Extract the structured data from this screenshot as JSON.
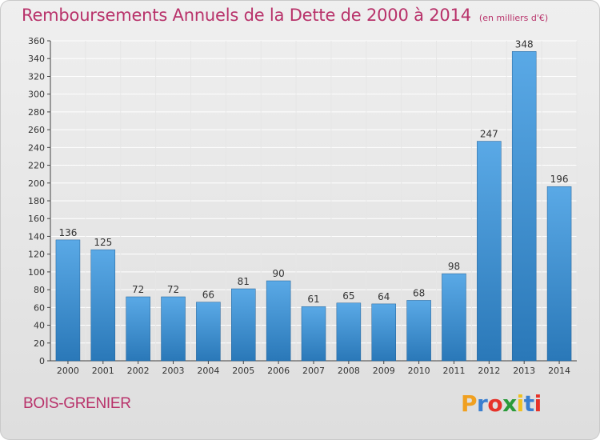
{
  "chart_data": {
    "type": "bar",
    "title": "Remboursements Annuels de la Dette de 2000 à 2014",
    "subtitle": "(en milliers d'€)",
    "categories": [
      "2000",
      "2001",
      "2002",
      "2003",
      "2004",
      "2005",
      "2006",
      "2007",
      "2008",
      "2009",
      "2010",
      "2011",
      "2012",
      "2013",
      "2014"
    ],
    "values": [
      136,
      125,
      72,
      72,
      66,
      81,
      90,
      61,
      65,
      64,
      68,
      98,
      247,
      348,
      196
    ],
    "ylim": [
      0,
      360
    ],
    "yticks": [
      0,
      20,
      40,
      60,
      80,
      100,
      120,
      140,
      160,
      180,
      200,
      220,
      240,
      260,
      280,
      300,
      320,
      340,
      360
    ],
    "xlabel": "",
    "ylabel": "",
    "grid": true,
    "data_labels": true,
    "colors": {
      "bar_light": "#5aa9e6",
      "bar_dark": "#2a78b8",
      "text": "#b8326a",
      "grid": "#ffffff"
    }
  },
  "footer": {
    "commune": "BOIS-GRENIER",
    "logo_letters": [
      "P",
      "r",
      "o",
      "x",
      "i",
      "t",
      "i"
    ],
    "logo_colors": [
      "#f0a020",
      "#3a7fd0",
      "#e6332a",
      "#2a9a3a",
      "#f0c020",
      "#3a7fd0",
      "#e6332a"
    ]
  }
}
